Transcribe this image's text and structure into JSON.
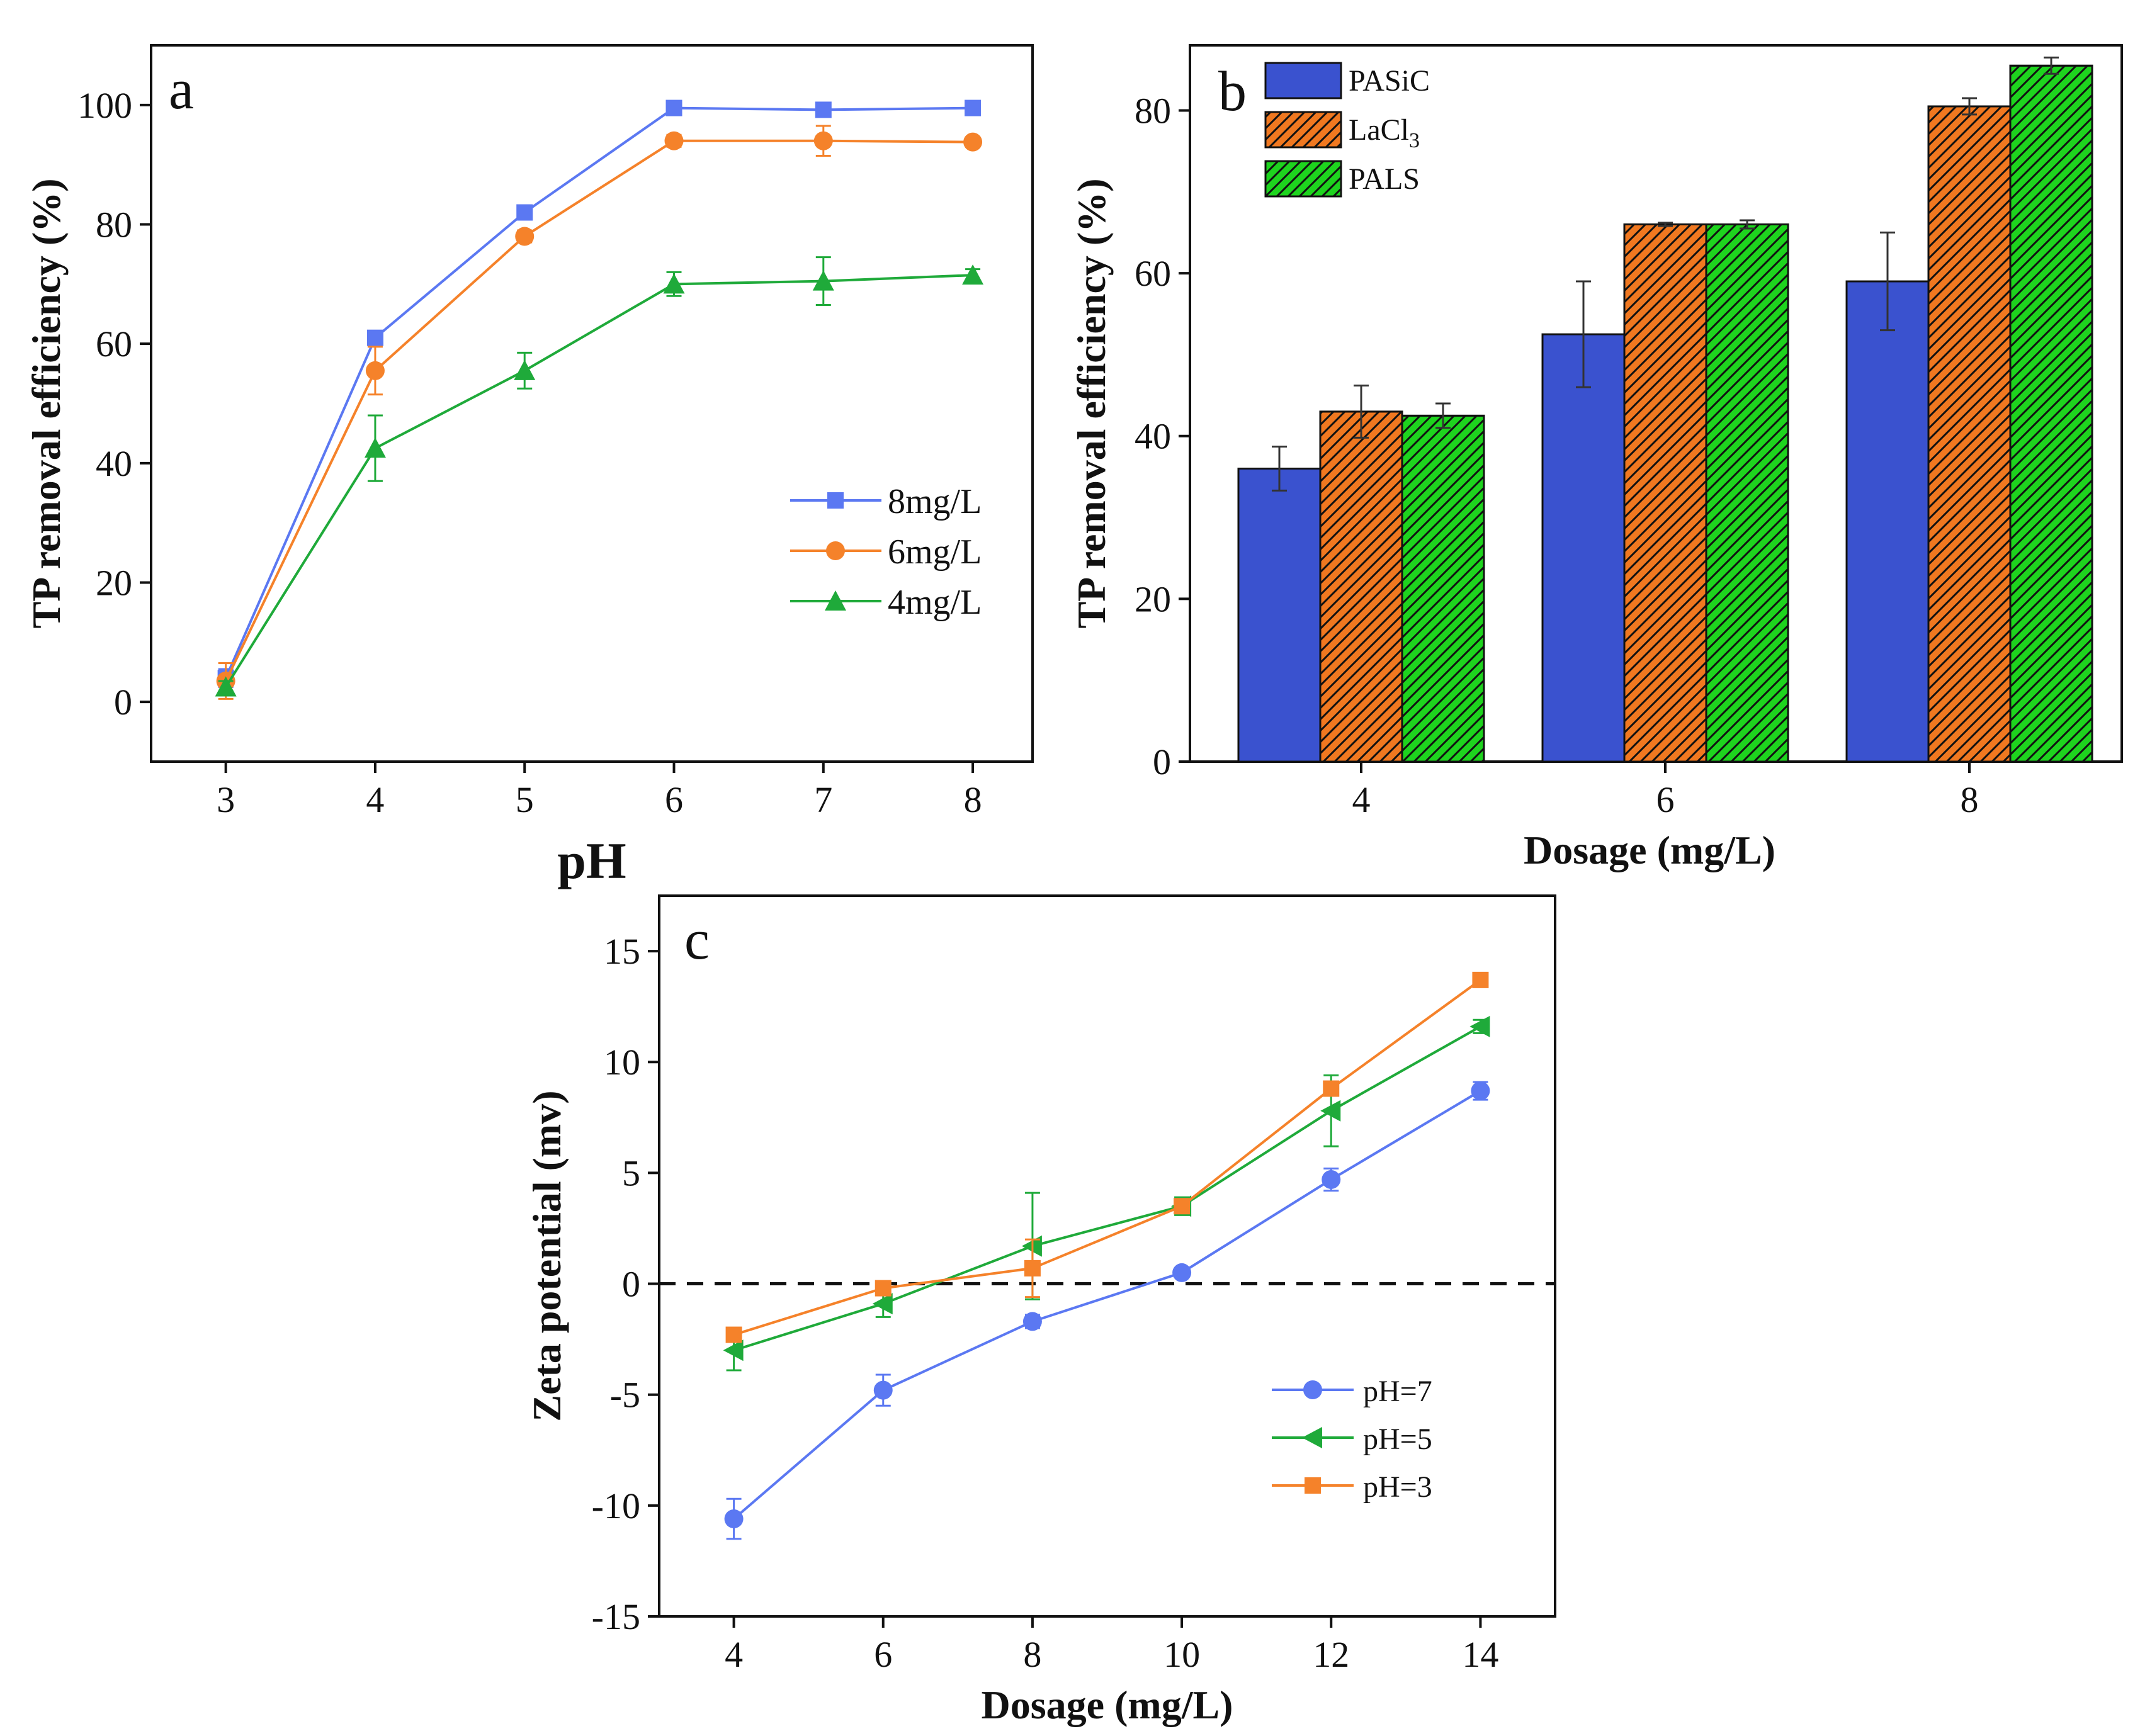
{
  "chart_data": [
    {
      "panel": "a",
      "type": "line",
      "xlabel": "pH",
      "ylabel": "TP removal efficiency (%)",
      "xlim": [
        2.5,
        8.4
      ],
      "ylim": [
        -10,
        110
      ],
      "xticks": [
        3,
        4,
        5,
        6,
        7,
        8
      ],
      "yticks": [
        0,
        20,
        40,
        60,
        80,
        100
      ],
      "x": [
        3,
        4,
        5,
        6,
        7,
        8
      ],
      "legend_position": "right",
      "series": [
        {
          "name": "8mg/L",
          "marker": "square",
          "color": "#5b78f2",
          "values": [
            4,
            61,
            82,
            99.5,
            99.2,
            99.5
          ],
          "errors": [
            1.5,
            1,
            1,
            0.5,
            0.5,
            0.5
          ]
        },
        {
          "name": "6mg/L",
          "marker": "circle",
          "color": "#f5822a",
          "values": [
            3.5,
            55.5,
            78,
            94,
            94,
            93.8
          ],
          "errors": [
            3,
            4,
            1,
            1,
            2.5,
            0.8
          ]
        },
        {
          "name": "4mg/L",
          "marker": "triangle-up",
          "color": "#1faa3a",
          "values": [
            2.5,
            42.5,
            55.5,
            70,
            70.5,
            71.5
          ],
          "errors": [
            1,
            5.5,
            3,
            2,
            4,
            1
          ]
        }
      ]
    },
    {
      "panel": "b",
      "type": "bar",
      "xlabel": "Dosage (mg/L)",
      "ylabel": "TP removal efficiency (%)",
      "categories": [
        "4",
        "6",
        "8"
      ],
      "ylim": [
        0,
        88
      ],
      "yticks": [
        0,
        20,
        40,
        60,
        80
      ],
      "legend_position": "top-left",
      "series": [
        {
          "name": "PASiC",
          "name_base": "PASiC",
          "name_sub": "",
          "color": "#3a52cf",
          "hatch": "none",
          "values": [
            36,
            52.5,
            59
          ],
          "errors": [
            2.7,
            6.5,
            6
          ]
        },
        {
          "name": "LaCl3",
          "name_base": "LaCl",
          "name_sub": "3",
          "color": "#f07820",
          "hatch": "diagonal",
          "values": [
            43,
            66,
            80.5
          ],
          "errors": [
            3.2,
            0.2,
            1
          ]
        },
        {
          "name": "PALS",
          "name_base": "PALS",
          "name_sub": "",
          "color": "#1ed41e",
          "hatch": "diagonal",
          "values": [
            42.5,
            66,
            85.5
          ],
          "errors": [
            1.5,
            0.5,
            1
          ]
        }
      ]
    },
    {
      "panel": "c",
      "type": "line",
      "xlabel": "Dosage (mg/L)",
      "ylabel": "Zeta potential (mv)",
      "xlim": [
        3,
        15
      ],
      "ylim": [
        -15,
        17.5
      ],
      "xticks": [
        4,
        6,
        8,
        10,
        12,
        14
      ],
      "yticks": [
        -15,
        -10,
        -5,
        0,
        5,
        10,
        15
      ],
      "reference_line_y": 0,
      "x": [
        4,
        6,
        8,
        10,
        12,
        14
      ],
      "legend_position": "bottom-right",
      "series": [
        {
          "name": "pH=7",
          "marker": "circle",
          "color": "#5b78f2",
          "values": [
            -10.6,
            -4.8,
            -1.7,
            0.5,
            4.7,
            8.7
          ],
          "errors": [
            0.9,
            0.7,
            0.3,
            0.2,
            0.5,
            0.4
          ]
        },
        {
          "name": "pH=5",
          "marker": "triangle-left",
          "color": "#1faa3a",
          "values": [
            -3,
            -0.9,
            1.7,
            3.5,
            7.8,
            11.6
          ],
          "errors": [
            0.9,
            0.6,
            2.4,
            0.4,
            1.6,
            0.3
          ]
        },
        {
          "name": "pH=3",
          "marker": "square",
          "color": "#f5822a",
          "values": [
            -2.3,
            -0.2,
            0.7,
            3.5,
            8.8,
            13.7
          ],
          "errors": [
            0.2,
            0.2,
            1.3,
            0.3,
            0.2,
            0.3
          ]
        }
      ]
    }
  ]
}
